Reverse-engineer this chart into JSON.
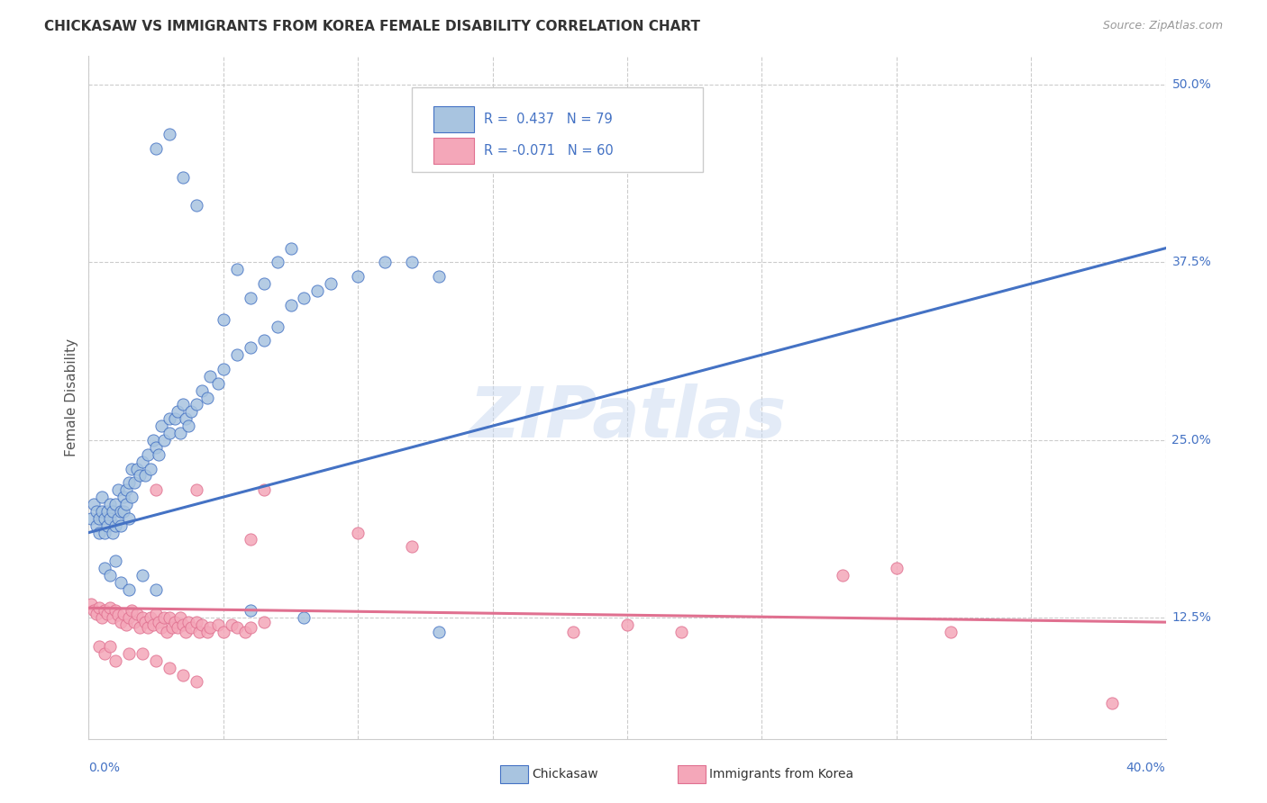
{
  "title": "CHICKASAW VS IMMIGRANTS FROM KOREA FEMALE DISABILITY CORRELATION CHART",
  "source": "Source: ZipAtlas.com",
  "ylabel": "Female Disability",
  "xmin": 0.0,
  "xmax": 0.4,
  "ymin": 0.04,
  "ymax": 0.52,
  "chickasaw_color": "#a8c4e0",
  "korea_color": "#f4a7b9",
  "trendline_blue": "#4472c4",
  "trendline_pink": "#e07090",
  "watermark": "ZIPatlas",
  "blue_line_x0": 0.0,
  "blue_line_y0": 0.185,
  "blue_line_x1": 0.4,
  "blue_line_y1": 0.385,
  "pink_line_x0": 0.0,
  "pink_line_y0": 0.132,
  "pink_line_x1": 0.4,
  "pink_line_y1": 0.122,
  "chickasaw_scatter": [
    [
      0.001,
      0.195
    ],
    [
      0.002,
      0.205
    ],
    [
      0.003,
      0.19
    ],
    [
      0.003,
      0.2
    ],
    [
      0.004,
      0.195
    ],
    [
      0.004,
      0.185
    ],
    [
      0.005,
      0.2
    ],
    [
      0.005,
      0.21
    ],
    [
      0.006,
      0.195
    ],
    [
      0.006,
      0.185
    ],
    [
      0.007,
      0.2
    ],
    [
      0.007,
      0.19
    ],
    [
      0.008,
      0.205
    ],
    [
      0.008,
      0.195
    ],
    [
      0.009,
      0.185
    ],
    [
      0.009,
      0.2
    ],
    [
      0.01,
      0.19
    ],
    [
      0.01,
      0.205
    ],
    [
      0.011,
      0.195
    ],
    [
      0.011,
      0.215
    ],
    [
      0.012,
      0.2
    ],
    [
      0.012,
      0.19
    ],
    [
      0.013,
      0.21
    ],
    [
      0.013,
      0.2
    ],
    [
      0.014,
      0.205
    ],
    [
      0.014,
      0.215
    ],
    [
      0.015,
      0.22
    ],
    [
      0.015,
      0.195
    ],
    [
      0.016,
      0.23
    ],
    [
      0.016,
      0.21
    ],
    [
      0.017,
      0.22
    ],
    [
      0.018,
      0.23
    ],
    [
      0.019,
      0.225
    ],
    [
      0.02,
      0.235
    ],
    [
      0.021,
      0.225
    ],
    [
      0.022,
      0.24
    ],
    [
      0.023,
      0.23
    ],
    [
      0.024,
      0.25
    ],
    [
      0.025,
      0.245
    ],
    [
      0.026,
      0.24
    ],
    [
      0.027,
      0.26
    ],
    [
      0.028,
      0.25
    ],
    [
      0.03,
      0.255
    ],
    [
      0.03,
      0.265
    ],
    [
      0.032,
      0.265
    ],
    [
      0.033,
      0.27
    ],
    [
      0.034,
      0.255
    ],
    [
      0.035,
      0.275
    ],
    [
      0.036,
      0.265
    ],
    [
      0.037,
      0.26
    ],
    [
      0.038,
      0.27
    ],
    [
      0.04,
      0.275
    ],
    [
      0.042,
      0.285
    ],
    [
      0.044,
      0.28
    ],
    [
      0.045,
      0.295
    ],
    [
      0.048,
      0.29
    ],
    [
      0.05,
      0.3
    ],
    [
      0.055,
      0.31
    ],
    [
      0.06,
      0.315
    ],
    [
      0.065,
      0.32
    ],
    [
      0.07,
      0.33
    ],
    [
      0.075,
      0.345
    ],
    [
      0.08,
      0.35
    ],
    [
      0.085,
      0.355
    ],
    [
      0.09,
      0.36
    ],
    [
      0.1,
      0.365
    ],
    [
      0.11,
      0.375
    ],
    [
      0.12,
      0.375
    ],
    [
      0.13,
      0.365
    ],
    [
      0.006,
      0.16
    ],
    [
      0.008,
      0.155
    ],
    [
      0.01,
      0.165
    ],
    [
      0.012,
      0.15
    ],
    [
      0.015,
      0.145
    ],
    [
      0.02,
      0.155
    ],
    [
      0.025,
      0.145
    ],
    [
      0.06,
      0.13
    ],
    [
      0.08,
      0.125
    ],
    [
      0.13,
      0.115
    ],
    [
      0.025,
      0.455
    ],
    [
      0.03,
      0.465
    ],
    [
      0.035,
      0.435
    ],
    [
      0.04,
      0.415
    ],
    [
      0.05,
      0.335
    ],
    [
      0.055,
      0.37
    ],
    [
      0.06,
      0.35
    ],
    [
      0.065,
      0.36
    ],
    [
      0.07,
      0.375
    ],
    [
      0.075,
      0.385
    ]
  ],
  "korea_scatter": [
    [
      0.001,
      0.135
    ],
    [
      0.002,
      0.13
    ],
    [
      0.003,
      0.128
    ],
    [
      0.004,
      0.132
    ],
    [
      0.005,
      0.125
    ],
    [
      0.006,
      0.13
    ],
    [
      0.007,
      0.128
    ],
    [
      0.008,
      0.132
    ],
    [
      0.009,
      0.125
    ],
    [
      0.01,
      0.13
    ],
    [
      0.011,
      0.127
    ],
    [
      0.012,
      0.122
    ],
    [
      0.013,
      0.128
    ],
    [
      0.014,
      0.12
    ],
    [
      0.015,
      0.125
    ],
    [
      0.016,
      0.13
    ],
    [
      0.017,
      0.122
    ],
    [
      0.018,
      0.128
    ],
    [
      0.019,
      0.118
    ],
    [
      0.02,
      0.125
    ],
    [
      0.021,
      0.122
    ],
    [
      0.022,
      0.118
    ],
    [
      0.023,
      0.125
    ],
    [
      0.024,
      0.12
    ],
    [
      0.025,
      0.128
    ],
    [
      0.026,
      0.122
    ],
    [
      0.027,
      0.118
    ],
    [
      0.028,
      0.125
    ],
    [
      0.029,
      0.115
    ],
    [
      0.03,
      0.125
    ],
    [
      0.031,
      0.118
    ],
    [
      0.032,
      0.122
    ],
    [
      0.033,
      0.118
    ],
    [
      0.034,
      0.125
    ],
    [
      0.035,
      0.12
    ],
    [
      0.036,
      0.115
    ],
    [
      0.037,
      0.122
    ],
    [
      0.038,
      0.118
    ],
    [
      0.04,
      0.122
    ],
    [
      0.041,
      0.115
    ],
    [
      0.042,
      0.12
    ],
    [
      0.044,
      0.115
    ],
    [
      0.045,
      0.118
    ],
    [
      0.048,
      0.12
    ],
    [
      0.05,
      0.115
    ],
    [
      0.053,
      0.12
    ],
    [
      0.055,
      0.118
    ],
    [
      0.058,
      0.115
    ],
    [
      0.06,
      0.118
    ],
    [
      0.065,
      0.122
    ],
    [
      0.004,
      0.105
    ],
    [
      0.006,
      0.1
    ],
    [
      0.008,
      0.105
    ],
    [
      0.01,
      0.095
    ],
    [
      0.015,
      0.1
    ],
    [
      0.02,
      0.1
    ],
    [
      0.025,
      0.095
    ],
    [
      0.03,
      0.09
    ],
    [
      0.035,
      0.085
    ],
    [
      0.04,
      0.08
    ],
    [
      0.025,
      0.215
    ],
    [
      0.04,
      0.215
    ],
    [
      0.06,
      0.18
    ],
    [
      0.065,
      0.215
    ],
    [
      0.1,
      0.185
    ],
    [
      0.12,
      0.175
    ],
    [
      0.18,
      0.115
    ],
    [
      0.2,
      0.12
    ],
    [
      0.22,
      0.115
    ],
    [
      0.38,
      0.065
    ],
    [
      0.28,
      0.155
    ],
    [
      0.3,
      0.16
    ],
    [
      0.32,
      0.115
    ]
  ]
}
